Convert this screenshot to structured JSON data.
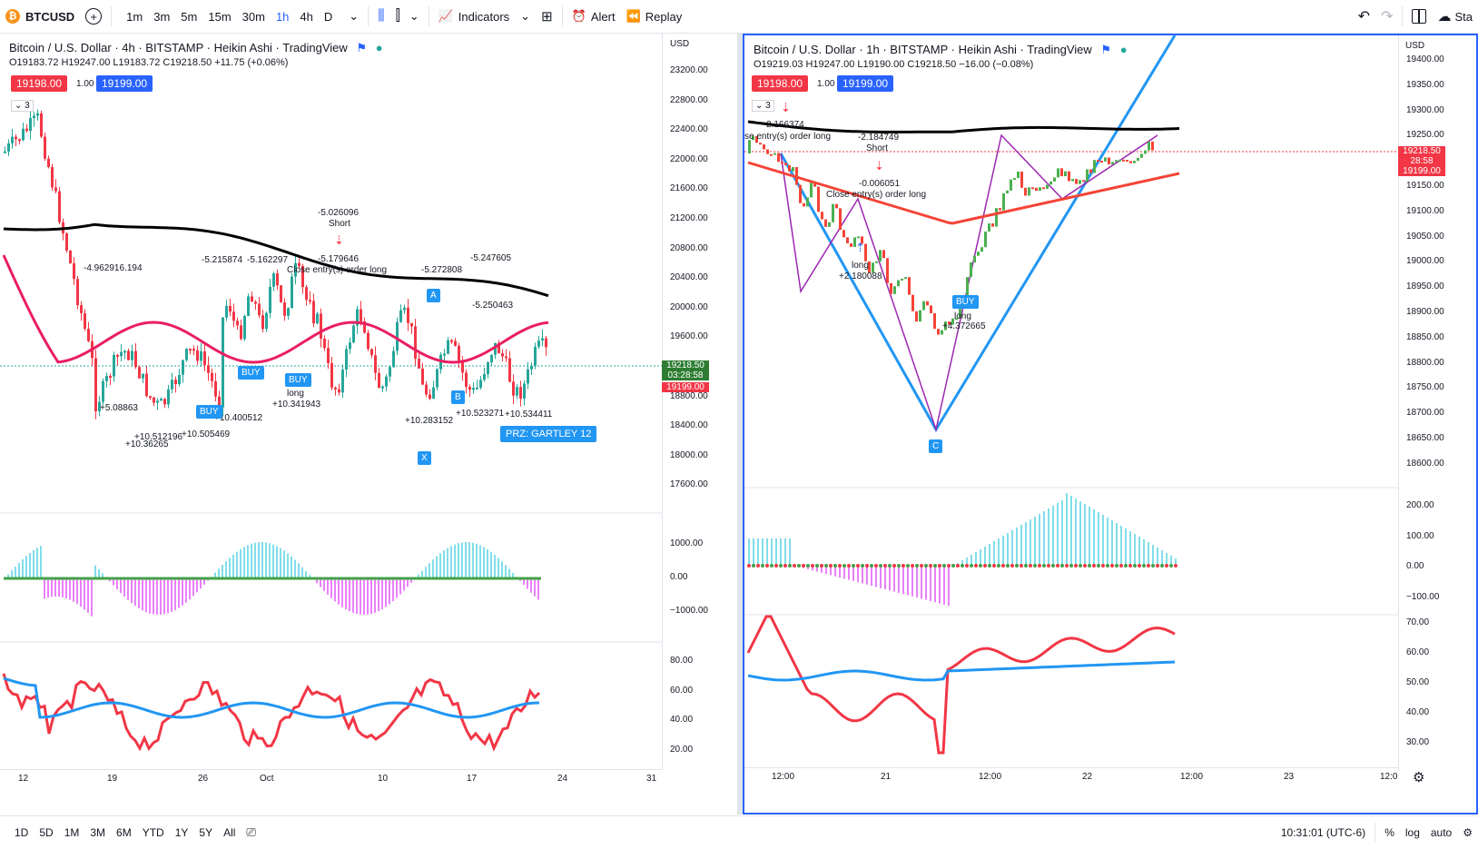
{
  "topbar": {
    "symbol": "BTCUSD",
    "intervals": [
      "1m",
      "3m",
      "5m",
      "15m",
      "30m",
      "1h",
      "4h",
      "D"
    ],
    "active_interval": "1h",
    "indicators": "Indicators",
    "alert": "Alert",
    "replay": "Replay",
    "overflow": "Sta"
  },
  "left_chart": {
    "title": "Bitcoin / U.S. Dollar · 4h · BITSTAMP · Heikin Ashi · TradingView",
    "ohlc": "O19183.72 H19247.00 L19183.72 C19218.50 +11.75 (+0.06%)",
    "sell_price": "19198.00",
    "spread": "1.00",
    "buy_price": "19199.00",
    "currency": "USD",
    "price_ticks": [
      "23200.00",
      "22800.00",
      "22400.00",
      "22000.00",
      "21600.00",
      "21200.00",
      "20800.00",
      "20400.00",
      "20000.00",
      "19600.00",
      "19200.00",
      "18800.00",
      "18400.00",
      "18000.00",
      "17600.00"
    ],
    "current_price": "19218.50",
    "countdown": "03:28:58",
    "current_buy": "19199.00",
    "macd_ticks": [
      "1000.00",
      "0.00",
      "−1000.00"
    ],
    "rsi_ticks": [
      "80.00",
      "60.00",
      "40.00",
      "20.00"
    ],
    "time_ticks": [
      "12",
      "19",
      "26",
      "Oct",
      "10",
      "17",
      "24",
      "31"
    ],
    "pattern_label": "PRZ: GARTLEY 12",
    "point_labels": [
      "A",
      "X",
      "B"
    ],
    "annotations": [
      "-5.026096",
      "Short",
      "Close entry(s) order long",
      "-5.179646",
      "-4.962916.194",
      "-5.215874",
      "-5.162297",
      "-5.272808",
      "-5.247605",
      "-5.250463",
      "+10.341943",
      "+10.505469",
      "+10.400512",
      "+10.534411",
      "+10.523271",
      "+10.283152",
      "+10.512196",
      "+10.36265",
      "+5.08863",
      "long",
      "BUY"
    ]
  },
  "right_chart": {
    "title": "Bitcoin / U.S. Dollar · 1h · BITSTAMP · Heikin Ashi · TradingView",
    "ohlc": "O19219.03 H19247.00 L19190.00 C19218.50 −16.00 (−0.08%)",
    "sell_price": "19198.00",
    "spread": "1.00",
    "buy_price": "19199.00",
    "currency": "USD",
    "price_ticks": [
      "19400.00",
      "19350.00",
      "19300.00",
      "19250.00",
      "19200.00",
      "19150.00",
      "19100.00",
      "19050.00",
      "19000.00",
      "18950.00",
      "18900.00",
      "18850.00",
      "18800.00",
      "18750.00",
      "18700.00",
      "18650.00",
      "18600.00"
    ],
    "current_price": "19218.50",
    "countdown": "28:58",
    "current_buy": "19199.00",
    "macd_ticks": [
      "200.00",
      "100.00",
      "0.00",
      "−100.00"
    ],
    "rsi_ticks": [
      "70.00",
      "60.00",
      "50.00",
      "40.00",
      "30.00"
    ],
    "time_ticks": [
      "12:00",
      "21",
      "12:00",
      "22",
      "12:00",
      "23",
      "12:0"
    ],
    "point_label": "C",
    "annotations": [
      "2.166374",
      "se entry(s) order long",
      "-2.184749",
      "Short",
      "-0.006051",
      "Close entry(s) order long",
      "long",
      "+2.180088",
      "BUY",
      "long",
      "+4.372665"
    ]
  },
  "bottombar": {
    "ranges": [
      "1D",
      "5D",
      "1M",
      "3M",
      "6M",
      "YTD",
      "1Y",
      "5Y",
      "All"
    ],
    "clock": "10:31:01 (UTC-6)",
    "percent": "%",
    "log": "log",
    "auto": "auto"
  }
}
